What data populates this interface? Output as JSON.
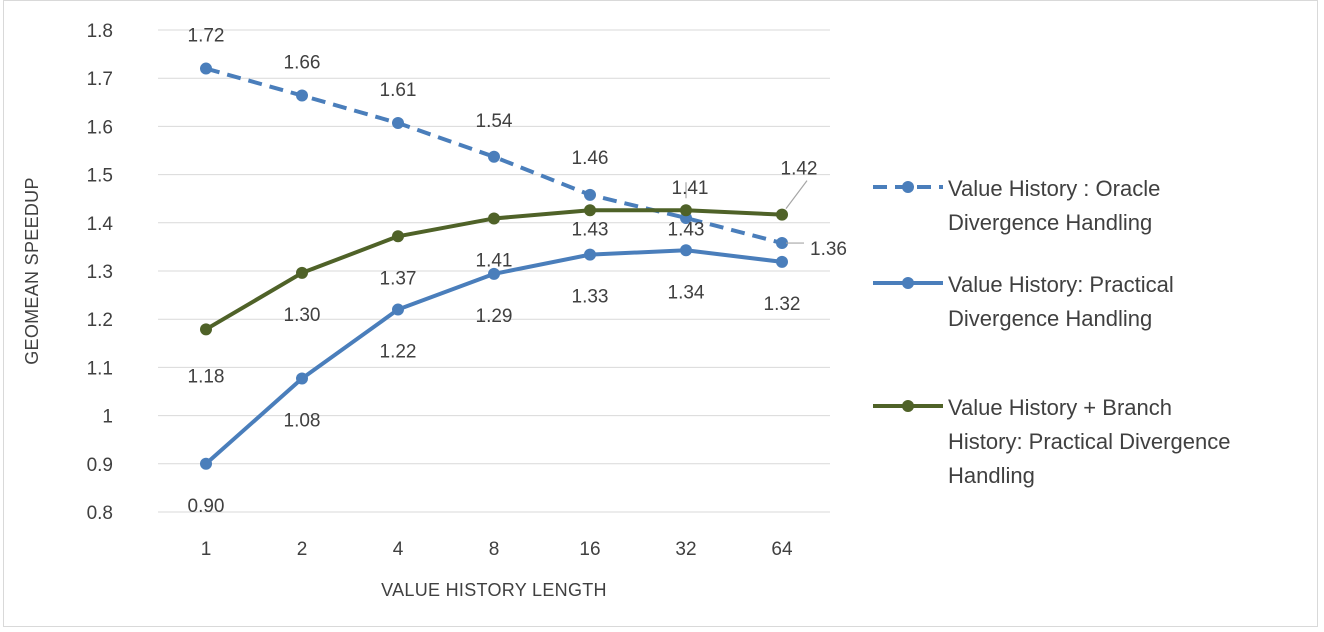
{
  "chart_data": {
    "type": "line",
    "categories": [
      "1",
      "2",
      "4",
      "8",
      "16",
      "32",
      "64"
    ],
    "xlabel": "VALUE HISTORY LENGTH",
    "ylabel": "GEOMEAN SPEEDUP",
    "ylim": [
      0.8,
      1.8
    ],
    "ytick_step": 0.1,
    "y_ticks": [
      "0.8",
      "0.9",
      "1",
      "1.1",
      "1.2",
      "1.3",
      "1.4",
      "1.5",
      "1.6",
      "1.7",
      "1.8"
    ],
    "grid": true,
    "legend_position": "right",
    "series": [
      {
        "name": "Value History : Oracle Divergence Handling",
        "legend_lines": [
          "Value History : Oracle",
          "Divergence Handling"
        ],
        "values": [
          1.72,
          1.664,
          1.607,
          1.537,
          1.458,
          1.41,
          1.358
        ],
        "labels": [
          "1.72",
          "1.66",
          "1.61",
          "1.54",
          "1.46",
          "1.41",
          "1.36"
        ],
        "color": "#4a7ebb",
        "dashed": true
      },
      {
        "name": "Value History: Practical Divergence Handling",
        "legend_lines": [
          "Value History: Practical",
          "Divergence Handling"
        ],
        "values": [
          0.9,
          1.077,
          1.22,
          1.294,
          1.334,
          1.343,
          1.319
        ],
        "labels": [
          "0.90",
          "1.08",
          "1.22",
          "1.29",
          "1.33",
          "1.34",
          "1.32"
        ],
        "color": "#4a7ebb",
        "dashed": false
      },
      {
        "name": "Value History + Branch History: Practical Divergence Handling",
        "legend_lines": [
          "Value History + Branch",
          "History: Practical Divergence",
          "Handling"
        ],
        "values": [
          1.179,
          1.296,
          1.372,
          1.409,
          1.426,
          1.426,
          1.417
        ],
        "labels": [
          "1.18",
          "1.30",
          "1.37",
          "1.41",
          "1.43",
          "1.43",
          "1.42"
        ],
        "color": "#4f6228",
        "dashed": false
      }
    ]
  }
}
